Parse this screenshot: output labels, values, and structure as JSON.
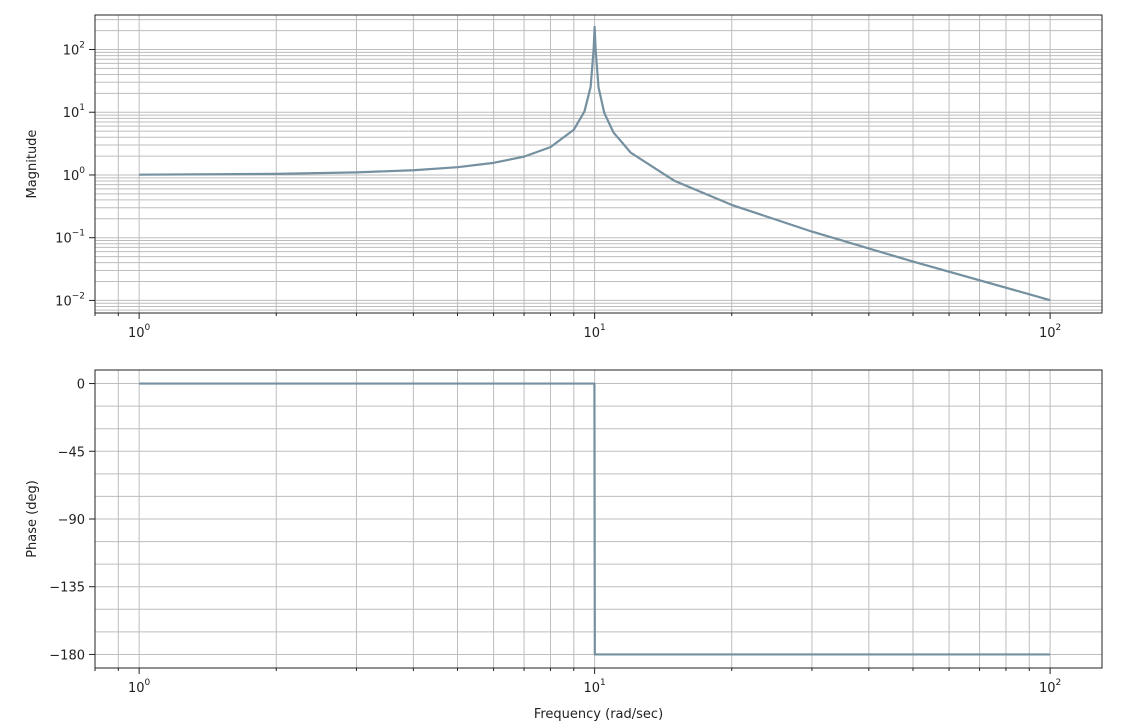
{
  "chart_data": [
    {
      "type": "line",
      "x_scale": "log",
      "y_scale": "log",
      "xlim": [
        0.8,
        130
      ],
      "ylim": [
        0.0063,
        355
      ],
      "grid": true,
      "ylabel": "Magnitude",
      "xlabel": "",
      "x_ticks": [
        {
          "base": "10",
          "exp": "0",
          "value": 1
        },
        {
          "base": "10",
          "exp": "1",
          "value": 10
        },
        {
          "base": "10",
          "exp": "2",
          "value": 100
        }
      ],
      "y_ticks": [
        {
          "base": "10",
          "exp": "−2",
          "value": 0.01
        },
        {
          "base": "10",
          "exp": "−1",
          "value": 0.1
        },
        {
          "base": "10",
          "exp": "0",
          "value": 1
        },
        {
          "base": "10",
          "exp": "1",
          "value": 10
        },
        {
          "base": "10",
          "exp": "2",
          "value": 100
        }
      ],
      "series": [
        {
          "color": "#7590a0",
          "x": [
            1,
            2,
            3,
            4,
            5,
            6,
            7,
            8,
            9,
            9.5,
            9.8,
            9.95,
            10,
            10.05,
            10.2,
            10.5,
            11,
            12,
            15,
            20,
            30,
            50,
            100
          ],
          "y": [
            1.01,
            1.04,
            1.1,
            1.19,
            1.33,
            1.56,
            1.96,
            2.78,
            5.26,
            10.3,
            25.3,
            100,
            230,
            100,
            24.8,
            9.76,
            4.76,
            2.27,
            0.8,
            0.333,
            0.125,
            0.0417,
            0.0101
          ]
        }
      ]
    },
    {
      "type": "line",
      "x_scale": "log",
      "y_scale": "linear",
      "xlim": [
        0.8,
        130
      ],
      "ylim": [
        -189,
        9
      ],
      "grid": true,
      "ylabel": "Phase (deg)",
      "xlabel": "Frequency (rad/sec)",
      "x_ticks": [
        {
          "base": "10",
          "exp": "0",
          "value": 1
        },
        {
          "base": "10",
          "exp": "1",
          "value": 10
        },
        {
          "base": "10",
          "exp": "2",
          "value": 100
        }
      ],
      "y_ticks": [
        {
          "label": "0",
          "value": 0
        },
        {
          "label": "−45",
          "value": -45
        },
        {
          "label": "−90",
          "value": -90
        },
        {
          "label": "−135",
          "value": -135
        },
        {
          "label": "−180",
          "value": -180
        }
      ],
      "series": [
        {
          "color": "#7590a0",
          "x": [
            1,
            9.99,
            10,
            10.01,
            100
          ],
          "y": [
            0,
            0,
            -90,
            -180,
            -180
          ]
        }
      ]
    }
  ]
}
